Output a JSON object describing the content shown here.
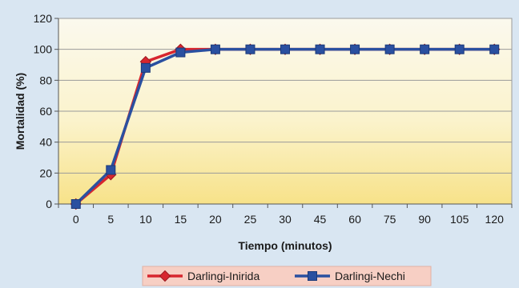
{
  "chart_data": {
    "type": "line",
    "categories": [
      "0",
      "5",
      "10",
      "15",
      "20",
      "25",
      "30",
      "45",
      "60",
      "75",
      "90",
      "105",
      "120"
    ],
    "series": [
      {
        "name": "Darlingi-Inirida",
        "color": "#d7262e",
        "marker": "diamond",
        "values": [
          0,
          19,
          92,
          100,
          100,
          100,
          100,
          100,
          100,
          100,
          100,
          100,
          100
        ]
      },
      {
        "name": "Darlingi-Nechi",
        "color": "#2a50a0",
        "marker": "square",
        "values": [
          0,
          22,
          88,
          98,
          100,
          100,
          100,
          100,
          100,
          100,
          100,
          100,
          100
        ]
      }
    ],
    "xlabel": "Tiempo (minutos)",
    "ylabel": "Mortalidad (%)",
    "ylim": [
      0,
      120
    ],
    "yticks": [
      0,
      20,
      40,
      60,
      80,
      100,
      120
    ],
    "grid": true,
    "legend": "bottom"
  }
}
